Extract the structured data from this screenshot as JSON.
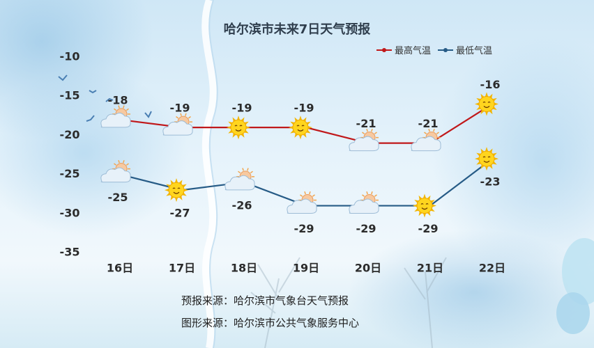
{
  "title": "哈尔滨市未来7日天气预报",
  "sources": [
    "预报来源：哈尔滨市气象台天气预报",
    "图形来源：哈尔滨市公共气象服务中心"
  ],
  "colors": {
    "high": "#c0181a",
    "low": "#265b86",
    "axis_text": "#2b2b2b"
  },
  "chart_data": {
    "type": "line",
    "title": "哈尔滨市未来7日天气预报",
    "categories": [
      "16日",
      "17日",
      "18日",
      "19日",
      "20日",
      "21日",
      "22日"
    ],
    "ylim": [
      -35,
      -10
    ],
    "yticks": [
      -10,
      -15,
      -20,
      -25,
      -30,
      -35
    ],
    "legend_position": "top-right",
    "grid": false,
    "series": [
      {
        "name": "最高气温",
        "values": [
          -18,
          -19,
          -19,
          -19,
          -21,
          -21,
          -16
        ],
        "icons": [
          "cloudy-sun-icon",
          "cloudy-sun-icon",
          "sun-icon",
          "sun-icon",
          "cloudy-sun-icon",
          "cloudy-sun-icon",
          "sun-icon"
        ]
      },
      {
        "name": "最低气温",
        "values": [
          -25,
          -27,
          -26,
          -29,
          -29,
          -29,
          -23
        ],
        "icons": [
          "cloudy-sun-icon",
          "sun-icon",
          "cloudy-sun-icon",
          "cloudy-sun-icon",
          "cloudy-sun-icon",
          "sun-icon",
          "sun-icon"
        ]
      }
    ]
  }
}
